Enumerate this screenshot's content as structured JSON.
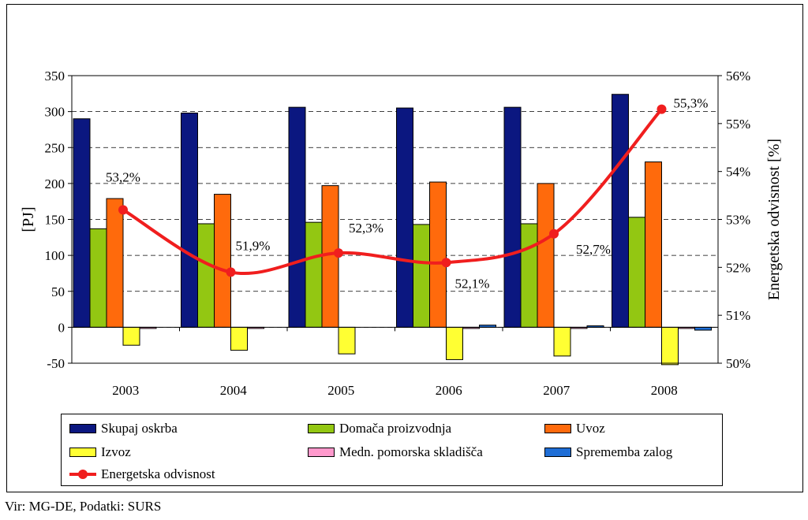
{
  "chart_data": {
    "type": "bar+line",
    "categories": [
      "2003",
      "2004",
      "2005",
      "2006",
      "2007",
      "2008"
    ],
    "series": [
      {
        "name": "Skupaj oskrba",
        "color": "#0b1780",
        "axis": "left",
        "values": [
          290,
          298,
          306,
          305,
          306,
          324
        ]
      },
      {
        "name": "Domača proizvodnja",
        "color": "#93c712",
        "axis": "left",
        "values": [
          137,
          144,
          146,
          143,
          144,
          153
        ]
      },
      {
        "name": "Uvoz",
        "color": "#ff6a0c",
        "axis": "left",
        "values": [
          179,
          185,
          197,
          202,
          200,
          230
        ]
      },
      {
        "name": "Izvoz",
        "color": "#ffff33",
        "axis": "left",
        "values": [
          -25,
          -32,
          -37,
          -45,
          -40,
          -52
        ]
      },
      {
        "name": "Medn. pomorska skladišča",
        "color": "#ff99cc",
        "axis": "left",
        "values": [
          -1,
          -1,
          0,
          -1,
          -1,
          -1
        ]
      },
      {
        "name": "Sprememba zalog",
        "color": "#1f6ed6",
        "axis": "left",
        "values": [
          0,
          0,
          0,
          3,
          2,
          -4
        ]
      },
      {
        "name": "Energetska odvisnost",
        "color": "#f01e1e",
        "axis": "right",
        "type": "line",
        "values": [
          53.2,
          51.9,
          52.3,
          52.1,
          52.7,
          55.3
        ],
        "labels": [
          "53,2%",
          "51,9%",
          "52,3%",
          "52,1%",
          "52,7%",
          "55,3%"
        ]
      }
    ],
    "ylabel": "[PJ]",
    "ylim": [
      -50,
      350
    ],
    "yticks": [
      "-50",
      "0",
      "50",
      "100",
      "150",
      "200",
      "250",
      "300",
      "350"
    ],
    "ytick_values": [
      -50,
      0,
      50,
      100,
      150,
      200,
      250,
      300,
      350
    ],
    "y2label": "Energetska odvisnost [%]",
    "y2lim": [
      50,
      56
    ],
    "y2ticks": [
      "50%",
      "51%",
      "52%",
      "53%",
      "54%",
      "55%",
      "56%"
    ],
    "y2tick_values": [
      50,
      51,
      52,
      53,
      54,
      55,
      56
    ],
    "grid": "dashed-horizontal",
    "legend_position": "bottom"
  },
  "legend": [
    {
      "label": "Skupaj oskrba",
      "color": "#0b1780"
    },
    {
      "label": "Domača proizvodnja",
      "color": "#93c712"
    },
    {
      "label": "Uvoz",
      "color": "#ff6a0c"
    },
    {
      "label": "Izvoz",
      "color": "#ffff33"
    },
    {
      "label": "Medn. pomorska skladišča",
      "color": "#ff99cc"
    },
    {
      "label": "Sprememba zalog",
      "color": "#1f6ed6"
    },
    {
      "label": "Energetska odvisnost",
      "color": "#f01e1e"
    }
  ],
  "source": "Vir: MG-DE, Podatki: SURS"
}
